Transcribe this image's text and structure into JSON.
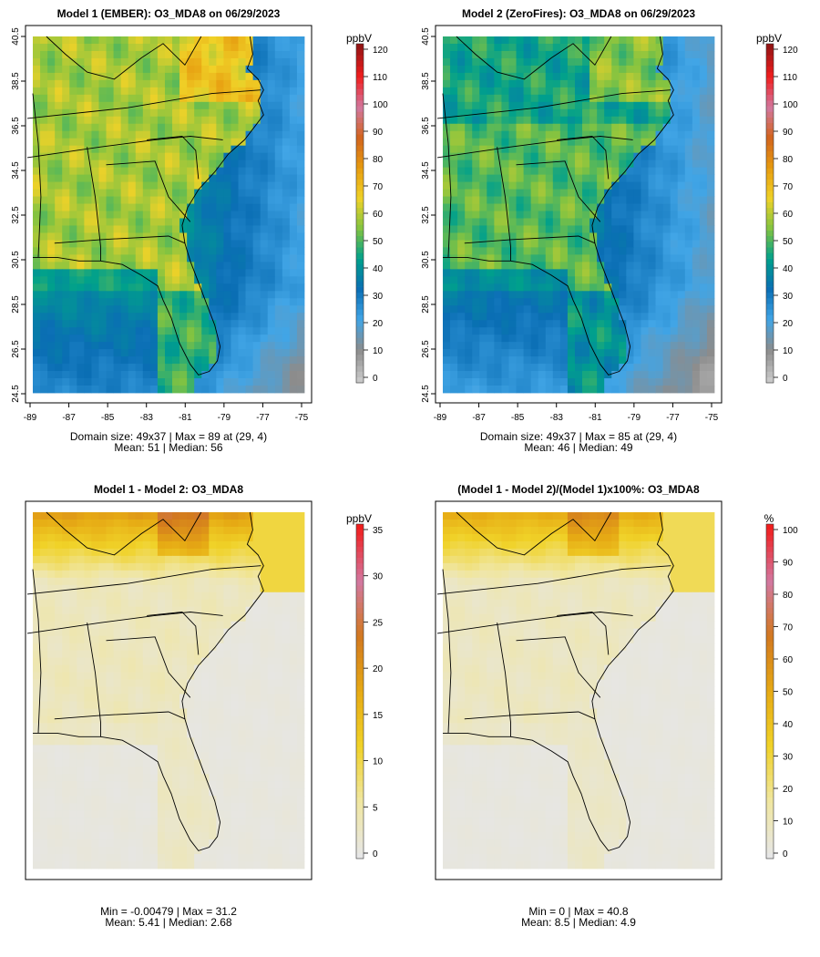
{
  "panels": [
    {
      "title": "Model 1 (EMBER): O3_MDA8 on 06/29/2023",
      "stat_line1": "Domain size: 49x37 | Max = 89 at (29, 4)",
      "stat_line2": "Mean: 51 |  Median: 56",
      "axes": {
        "y_ticks": [
          "24.5",
          "26.5",
          "28.5",
          "30.5",
          "32.5",
          "34.5",
          "36.5",
          "38.5",
          "40.5"
        ],
        "x_ticks": [
          "-89",
          "-87",
          "-85",
          "-83",
          "-81",
          "-79",
          "-77",
          "-75"
        ]
      },
      "colorbar": {
        "unit": "ppbV",
        "ticks": [
          "0",
          "10",
          "20",
          "30",
          "40",
          "50",
          "60",
          "70",
          "80",
          "90",
          "100",
          "110",
          "120"
        ],
        "palette": "ozone"
      }
    },
    {
      "title": "Model 2 (ZeroFires): O3_MDA8 on 06/29/2023",
      "stat_line1": "Domain size: 49x37 | Max = 85 at (29, 4)",
      "stat_line2": "Mean: 46 |  Median: 49",
      "axes": {
        "y_ticks": [
          "24.5",
          "26.5",
          "28.5",
          "30.5",
          "32.5",
          "34.5",
          "36.5",
          "38.5",
          "40.5"
        ],
        "x_ticks": [
          "-89",
          "-87",
          "-85",
          "-83",
          "-81",
          "-79",
          "-77",
          "-75"
        ]
      },
      "colorbar": {
        "unit": "ppbV",
        "ticks": [
          "0",
          "10",
          "20",
          "30",
          "40",
          "50",
          "60",
          "70",
          "80",
          "90",
          "100",
          "110",
          "120"
        ],
        "palette": "ozone"
      }
    },
    {
      "title": "Model 1 - Model 2: O3_MDA8",
      "stat_line1": "Min = -0.00479 | Max = 31.2",
      "stat_line2": "Mean: 5.41 |  Median: 2.68",
      "colorbar": {
        "unit": "ppbV",
        "ticks": [
          "0",
          "5",
          "10",
          "15",
          "20",
          "25",
          "30",
          "35"
        ],
        "palette": "diff"
      }
    },
    {
      "title": "(Model 1 - Model 2)/(Model 1)x100%: O3_MDA8",
      "stat_line1": "Min = 0 | Max = 40.8",
      "stat_line2": "Mean: 8.5 |  Median: 4.9",
      "colorbar": {
        "unit": "%",
        "ticks": [
          "0",
          "10",
          "20",
          "30",
          "40",
          "50",
          "60",
          "70",
          "80",
          "90",
          "100"
        ],
        "palette": "diff"
      }
    }
  ],
  "palettes": {
    "ozone": [
      "#c8c8c8",
      "#8c8c8c",
      "#41a5e6",
      "#0a6eb4",
      "#00a08c",
      "#82c341",
      "#f0d228",
      "#e69b0f",
      "#d2641e",
      "#d278a0",
      "#f01e1e",
      "#961414"
    ],
    "diff": [
      "#e6e6e6",
      "#f0e6a0",
      "#f0d228",
      "#e6aa14",
      "#d2781e",
      "#d278a0",
      "#f01e1e"
    ]
  }
}
